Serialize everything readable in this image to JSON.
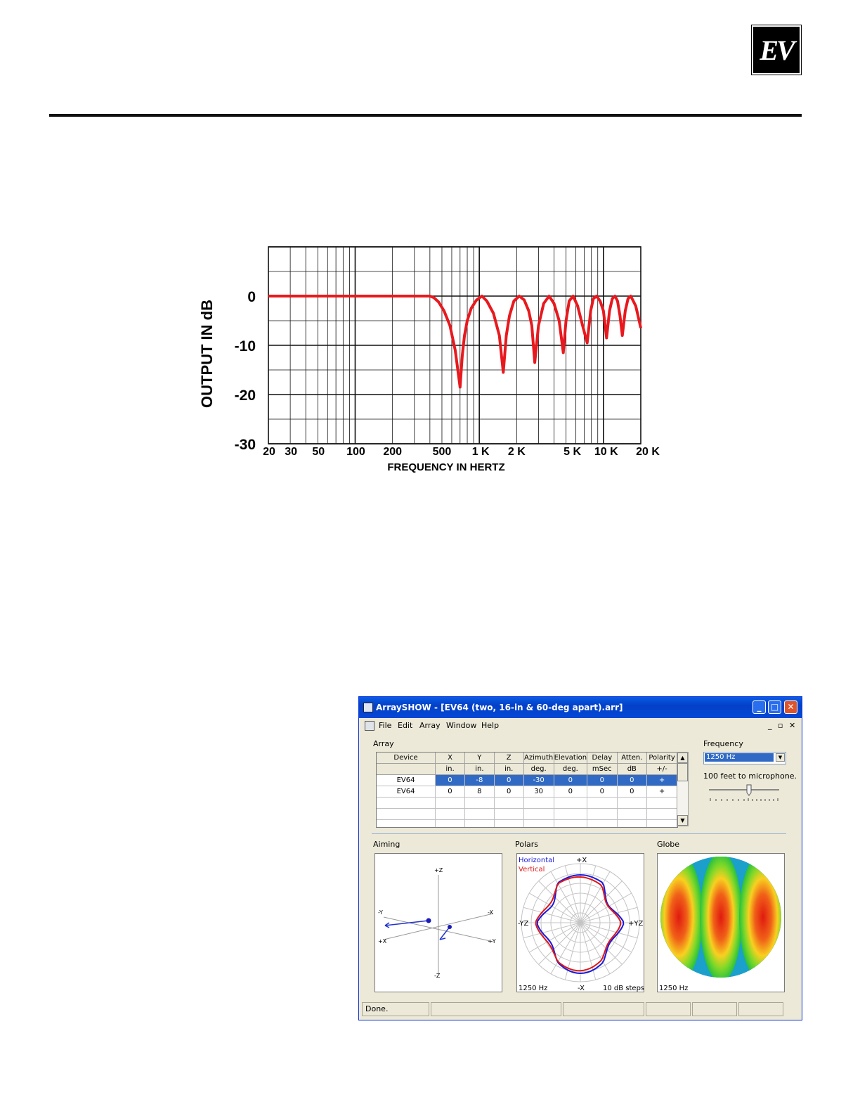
{
  "logo": {
    "text": "EV"
  },
  "chart_data": {
    "type": "line",
    "title": "",
    "xlabel": "FREQUENCY IN HERTZ",
    "ylabel": "OUTPUT IN dB",
    "xscale": "log",
    "xlim": [
      20,
      20000
    ],
    "ylim": [
      -30,
      10
    ],
    "grid": true,
    "ytick_labels": [
      "0",
      "-10",
      "-20",
      "-30"
    ],
    "xtick_labels": [
      "20",
      "30",
      "50",
      "100",
      "200",
      "500",
      "1 K",
      "2 K",
      "5 K",
      "10 K",
      "20 K"
    ],
    "line_color": "#e8191e",
    "series": [
      {
        "x": [
          20,
          100,
          400,
          430,
          470,
          520,
          580,
          640,
          700,
          730,
          760,
          800,
          860,
          950,
          1050,
          1150,
          1300,
          1450,
          1560,
          1650,
          1750,
          1900,
          2100,
          2300,
          2500,
          2650,
          2800,
          3000,
          3300,
          3650,
          4000,
          4400,
          4750,
          5000,
          5300,
          5700,
          6200,
          6800,
          7400,
          7900,
          8300,
          8800,
          9400,
          10000,
          10600,
          11200,
          11800,
          12400,
          13000,
          13600,
          14200,
          15000,
          15800,
          16600,
          17400,
          18200,
          19000,
          20000
        ],
        "y": [
          0,
          0,
          0,
          -0.3,
          -1.2,
          -3,
          -6,
          -11,
          -18.5,
          -12,
          -8,
          -5,
          -2.5,
          -0.8,
          0,
          -1,
          -3.5,
          -8,
          -15.5,
          -8,
          -4,
          -1,
          0,
          -0.8,
          -3,
          -6,
          -13.5,
          -6,
          -1.5,
          0,
          -1.5,
          -5,
          -11.5,
          -5,
          -1,
          0,
          -2,
          -6,
          -9.5,
          -3,
          -0.5,
          0,
          -1,
          -3,
          -8.5,
          -3,
          -0.5,
          0,
          -1,
          -4,
          -8,
          -3,
          -0.5,
          0,
          -1,
          -2,
          -4,
          -6.5
        ]
      }
    ]
  },
  "app": {
    "title": "ArraySHOW - [EV64 (two, 16-in & 60-deg apart).arr]",
    "menu": [
      "File",
      "Edit",
      "Array",
      "Window",
      "Help"
    ],
    "array_label": "Array",
    "columns": [
      "Device",
      "X",
      "Y",
      "Z",
      "Azimuth",
      "Elevation",
      "Delay",
      "Atten.",
      "Polarity"
    ],
    "units": [
      "",
      "in.",
      "in.",
      "in.",
      "deg.",
      "deg.",
      "mSec",
      "dB",
      "+/-"
    ],
    "rows": [
      [
        "EV64",
        "0",
        "-8",
        "0",
        "-30",
        "0",
        "0",
        "0",
        "+"
      ],
      [
        "EV64",
        "0",
        "8",
        "0",
        "30",
        "0",
        "0",
        "0",
        "+"
      ]
    ],
    "frequency_label": "Frequency",
    "frequency_value": "1250 Hz",
    "distance_text": "100 feet to microphone.",
    "aiming": {
      "label": "Aiming",
      "axes": {
        "z_pos": "+Z",
        "z_neg": "-Z",
        "y_neg": "-Y",
        "y_pos": "+Y",
        "x_neg": "-X",
        "x_pos": "+X"
      }
    },
    "polars": {
      "label": "Polars",
      "legend_h": "Horizontal",
      "legend_v": "Vertical",
      "horizontal_color": "#1a1adc",
      "vertical_color": "#e01818",
      "top": "+X",
      "bottom": "-X",
      "left": "-YZ",
      "right": "+YZ",
      "freq": "1250 Hz",
      "steps": "10 dB steps"
    },
    "globe": {
      "label": "Globe",
      "freq": "1250 Hz"
    },
    "status": "Done."
  }
}
